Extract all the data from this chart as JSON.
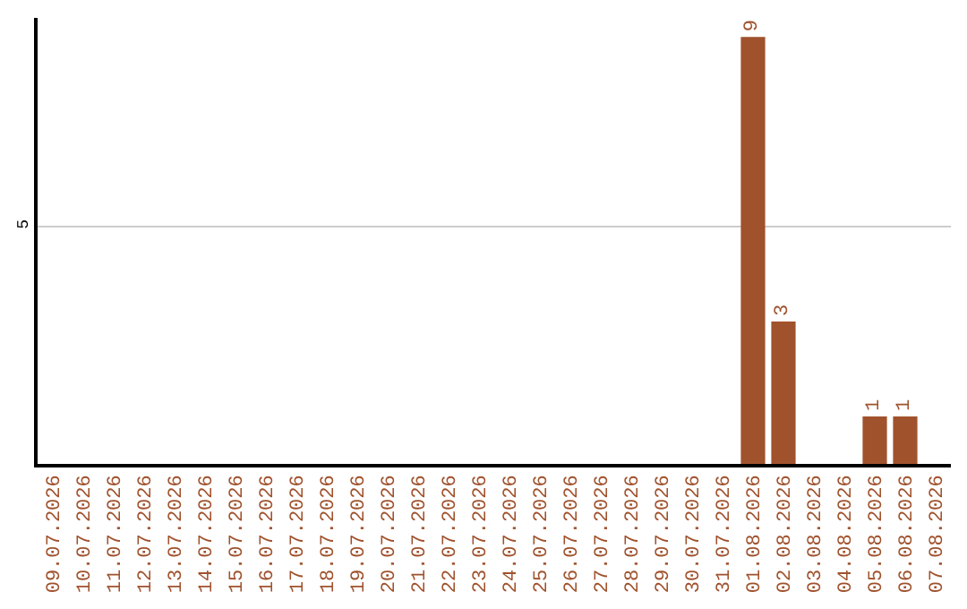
{
  "chart_data": {
    "type": "bar",
    "categories": [
      "09.07.2026",
      "10.07.2026",
      "11.07.2026",
      "12.07.2026",
      "13.07.2026",
      "14.07.2026",
      "15.07.2026",
      "16.07.2026",
      "17.07.2026",
      "18.07.2026",
      "19.07.2026",
      "20.07.2026",
      "21.07.2026",
      "22.07.2026",
      "23.07.2026",
      "24.07.2026",
      "25.07.2026",
      "26.07.2026",
      "27.07.2026",
      "28.07.2026",
      "29.07.2026",
      "30.07.2026",
      "31.07.2026",
      "01.08.2026",
      "02.08.2026",
      "03.08.2026",
      "04.08.2026",
      "05.08.2026",
      "06.08.2026",
      "07.08.2026"
    ],
    "values": [
      null,
      null,
      null,
      null,
      null,
      null,
      null,
      null,
      null,
      null,
      null,
      null,
      null,
      null,
      null,
      null,
      null,
      null,
      null,
      null,
      null,
      null,
      null,
      9,
      3,
      null,
      null,
      1,
      1,
      null
    ],
    "color": "#a0522d",
    "ylim": [
      0,
      9.4
    ],
    "yticks": [
      5
    ],
    "grid": "y",
    "data_labels": true
  }
}
